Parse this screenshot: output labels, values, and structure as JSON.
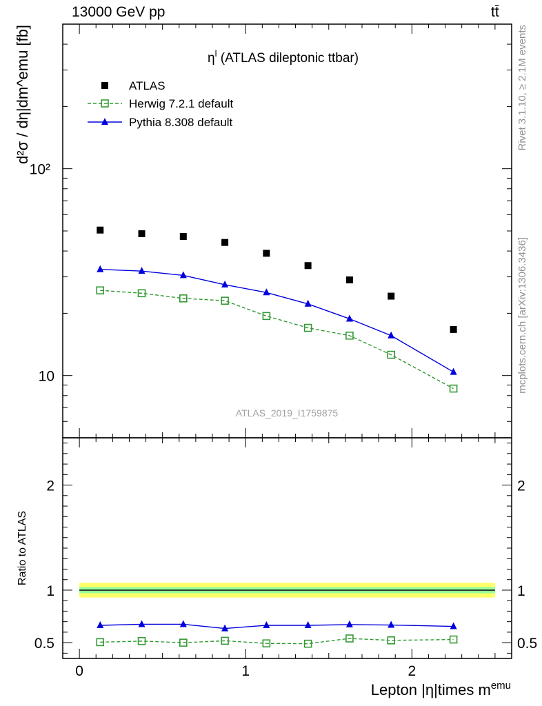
{
  "header": {
    "beam_label": "13000 GeV pp",
    "process_label": "tt̄"
  },
  "side_labels": {
    "rivet": "Rivet 3.1.10, ≥ 2.1M events",
    "mcplots": "mcplots.cern.ch [arXiv:1306.3436]"
  },
  "watermark": "ATLAS_2019_I1759875",
  "colors": {
    "atlas": "#000000",
    "herwig": "#339933",
    "pythia": "#0000dd",
    "band_inner": "#99ff99",
    "band_outer": "#ffff66"
  },
  "chart_data": [
    {
      "type": "line",
      "title": "η^l (ATLAS dileptonic ttbar)",
      "title_main": "η",
      "title_sup": "l",
      "title_rest": " (ATLAS dileptonic ttbar)",
      "ylabel": "d²σ / dη|dm^emu [fb]",
      "yscale": "log",
      "ylim": [
        5,
        500
      ],
      "xlim": [
        -0.1,
        2.6
      ],
      "y_tick_labels": [
        "10",
        "10²"
      ],
      "legend_placement": "top-left",
      "x": [
        0.125,
        0.375,
        0.625,
        0.875,
        1.125,
        1.375,
        1.625,
        1.875,
        2.25
      ],
      "series": [
        {
          "name": "ATLAS",
          "marker": "filled-square",
          "values": [
            50.5,
            48.5,
            47,
            44,
            39,
            34,
            29,
            24.2,
            16.7
          ]
        },
        {
          "name": "Herwig 7.2.1 default",
          "marker": "open-square",
          "line": "dashed",
          "values": [
            25.8,
            25,
            23.6,
            23,
            19.4,
            17,
            15.6,
            12.6,
            8.65
          ]
        },
        {
          "name": "Pythia 8.308 default",
          "marker": "triangle",
          "line": "solid",
          "values": [
            32.6,
            32,
            30.5,
            27.5,
            25.2,
            22.2,
            18.8,
            15.6,
            10.4
          ]
        }
      ]
    },
    {
      "type": "line",
      "ylabel": "Ratio to ATLAS",
      "xlabel": "Lepton |η|times m^emu",
      "xlabel_main": "Lepton |η|times m",
      "xlabel_sup": "emu",
      "ylim": [
        0.35,
        2.45
      ],
      "xlim": [
        -0.1,
        2.6
      ],
      "x_tick_labels": [
        "0",
        "1",
        "2"
      ],
      "y_tick_labels": [
        "0.5",
        "1",
        "2"
      ],
      "reference_band": {
        "center": 1.0,
        "inner": [
          0.97,
          1.03
        ],
        "outer": [
          0.93,
          1.07
        ]
      },
      "x": [
        0.125,
        0.375,
        0.625,
        0.875,
        1.125,
        1.375,
        1.625,
        1.875,
        2.25
      ],
      "series": [
        {
          "name": "Herwig 7.2.1 default",
          "values": [
            0.505,
            0.515,
            0.5,
            0.518,
            0.493,
            0.49,
            0.54,
            0.522,
            0.53
          ]
        },
        {
          "name": "Pythia 8.308 default",
          "values": [
            0.665,
            0.675,
            0.675,
            0.635,
            0.665,
            0.665,
            0.672,
            0.668,
            0.655
          ]
        }
      ]
    }
  ]
}
